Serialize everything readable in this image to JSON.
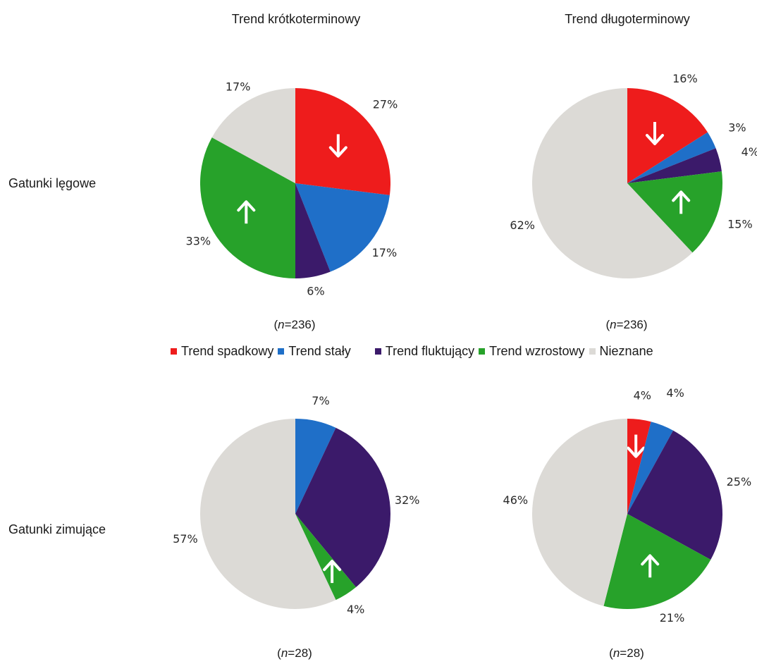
{
  "column_titles": [
    "Trend krótkoterminowy",
    "Trend długoterminowy"
  ],
  "row_titles": [
    "Gatunki lęgowe",
    "Gatunki zimujące"
  ],
  "legend": [
    {
      "label": "Trend spadkowy",
      "color": "#ee1c1c"
    },
    {
      "label": "Trend stały",
      "color": "#1f6fc8"
    },
    {
      "label": "Trend fluktujący",
      "color": "#3b1a6a"
    },
    {
      "label": "Trend wzrostowy",
      "color": "#27a22a"
    },
    {
      "label": "Nieznane",
      "color": "#dcdad6"
    }
  ],
  "chart_data": [
    {
      "type": "pie",
      "row": "Gatunki lęgowe",
      "column": "Trend krótkoterminowy",
      "n_label": "236",
      "slices": [
        {
          "name": "Trend spadkowy",
          "value": 27,
          "label": "27%",
          "arrow": "down"
        },
        {
          "name": "Trend stały",
          "value": 17,
          "label": "17%"
        },
        {
          "name": "Trend fluktujący",
          "value": 6,
          "label": "6%"
        },
        {
          "name": "Trend wzrostowy",
          "value": 33,
          "label": "33%",
          "arrow": "up"
        },
        {
          "name": "Nieznane",
          "value": 17,
          "label": "17%"
        }
      ]
    },
    {
      "type": "pie",
      "row": "Gatunki lęgowe",
      "column": "Trend długoterminowy",
      "n_label": "236",
      "slices": [
        {
          "name": "Trend spadkowy",
          "value": 16,
          "label": "16%",
          "arrow": "down"
        },
        {
          "name": "Trend stały",
          "value": 3,
          "label": "3%"
        },
        {
          "name": "Trend fluktujący",
          "value": 4,
          "label": "4%"
        },
        {
          "name": "Trend wzrostowy",
          "value": 15,
          "label": "15%",
          "arrow": "up"
        },
        {
          "name": "Nieznane",
          "value": 62,
          "label": "62%"
        }
      ]
    },
    {
      "type": "pie",
      "row": "Gatunki zimujące",
      "column": "Trend krótkoterminowy",
      "n_label": "28",
      "slices": [
        {
          "name": "Trend stały",
          "value": 7,
          "label": "7%"
        },
        {
          "name": "Trend fluktujący",
          "value": 32,
          "label": "32%"
        },
        {
          "name": "Trend wzrostowy",
          "value": 4,
          "label": "4%",
          "arrow": "up"
        },
        {
          "name": "Nieznane",
          "value": 57,
          "label": "57%"
        }
      ]
    },
    {
      "type": "pie",
      "row": "Gatunki zimujące",
      "column": "Trend długoterminowy",
      "n_label": "28",
      "slices": [
        {
          "name": "Trend spadkowy",
          "value": 4,
          "label": "4%",
          "arrow": "down"
        },
        {
          "name": "Trend stały",
          "value": 4,
          "label": "4%"
        },
        {
          "name": "Trend fluktujący",
          "value": 25,
          "label": "25%"
        },
        {
          "name": "Trend wzrostowy",
          "value": 21,
          "label": "21%",
          "arrow": "up"
        },
        {
          "name": "Nieznane",
          "value": 46,
          "label": "46%"
        }
      ]
    }
  ]
}
